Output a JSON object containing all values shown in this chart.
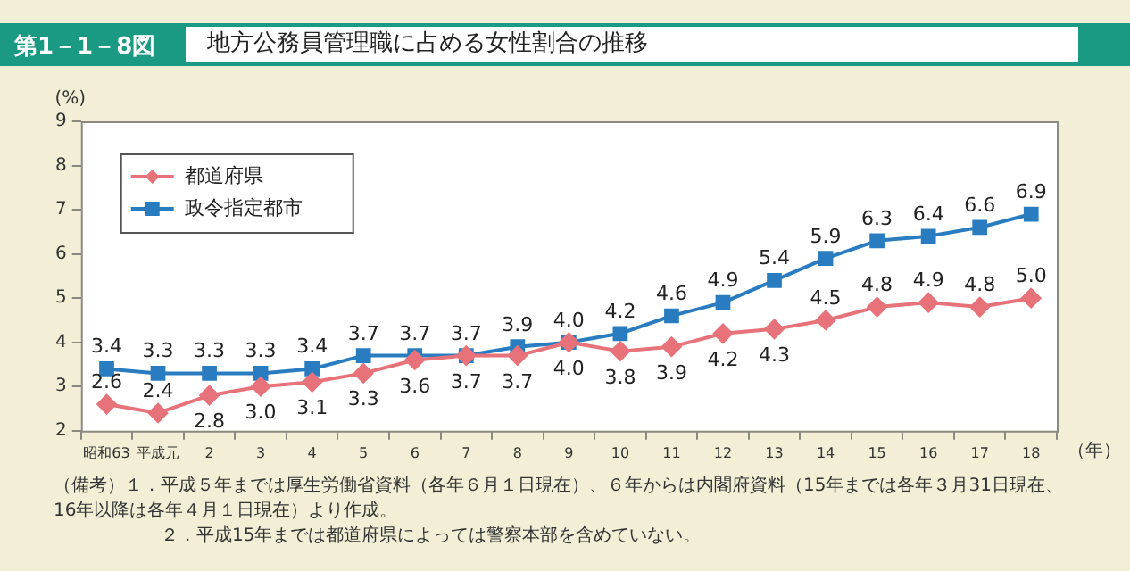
{
  "chart_data": {
    "type": "line",
    "title": "地方公務員管理職に占める女性割合の推移",
    "subtitle": "第1－1－8図",
    "ylabel": "(%)",
    "xlabel": "（年）",
    "categories": [
      "昭和63",
      "平成元",
      "2",
      "3",
      "4",
      "5",
      "6",
      "7",
      "8",
      "9",
      "10",
      "11",
      "12",
      "13",
      "14",
      "15",
      "16",
      "17",
      "18"
    ],
    "series": [
      {
        "name": "都道府県",
        "color": "#e8727a",
        "marker": "diamond",
        "values": [
          2.6,
          2.4,
          2.8,
          3.0,
          3.1,
          3.3,
          3.6,
          3.7,
          3.7,
          4.0,
          3.8,
          3.9,
          4.2,
          4.3,
          4.5,
          4.8,
          4.9,
          4.8,
          5.0
        ],
        "value_labels": [
          "2.6",
          "2.4",
          "2.8",
          "3.0",
          "3.1",
          "3.3",
          "3.6",
          "3.7",
          "3.7",
          "4.0",
          "3.8",
          "3.9",
          "4.2",
          "4.3",
          "4.5",
          "4.8",
          "4.9",
          "4.8",
          "5.0"
        ]
      },
      {
        "name": "政令指定都市",
        "color": "#2a7cc0",
        "marker": "square",
        "values": [
          3.4,
          3.3,
          3.3,
          3.3,
          3.4,
          3.7,
          3.7,
          3.7,
          3.9,
          4.0,
          4.2,
          4.6,
          4.9,
          5.4,
          5.9,
          6.3,
          6.4,
          6.6,
          6.9
        ],
        "value_labels": [
          "3.4",
          "3.3",
          "3.3",
          "3.3",
          "3.4",
          "3.7",
          "3.7",
          "3.7",
          "3.9",
          "4.0",
          "4.2",
          "4.6",
          "4.9",
          "5.4",
          "5.9",
          "6.3",
          "6.4",
          "6.6",
          "6.9"
        ]
      }
    ],
    "ylim": [
      2,
      9
    ],
    "yticks": [
      2,
      3,
      4,
      5,
      6,
      7,
      8,
      9
    ],
    "grid": false,
    "legend": "top left",
    "line_style": "solid",
    "annotations": [
      "（備考）１．平成５年までは厚生労働省資料（各年６月１日現在）、６年からは内閣府資料（15年までは各年３月31日現在、16年以降は各年４月１日現在）より作成。",
      "２．平成15年までは都道府県によっては警察本部を含めていない。"
    ]
  }
}
